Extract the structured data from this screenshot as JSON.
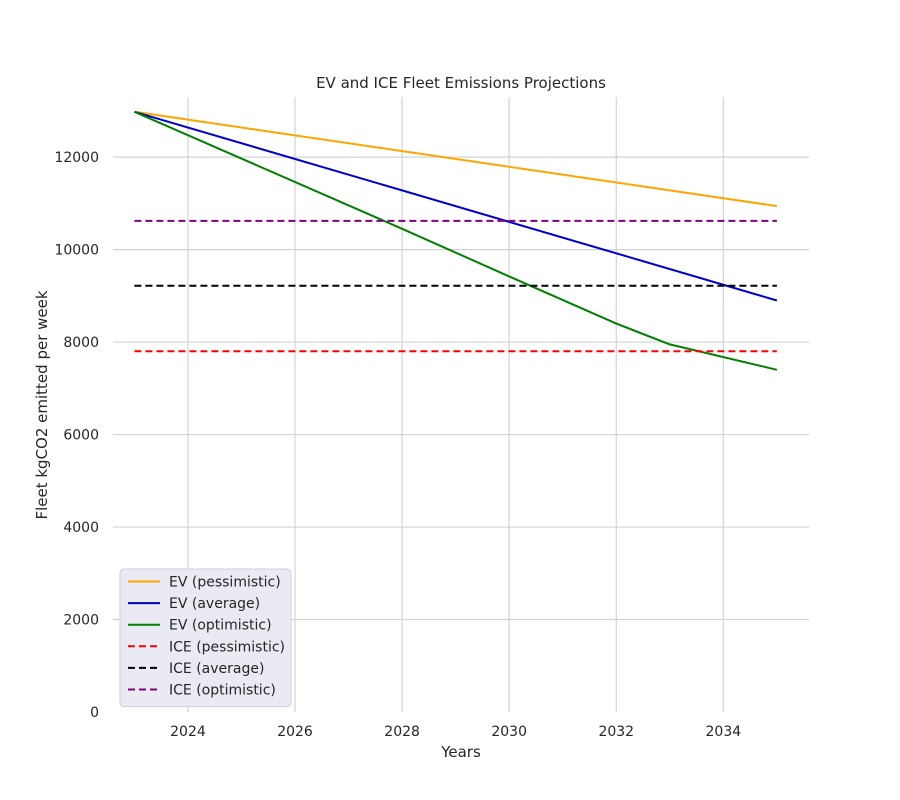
{
  "chart_data": {
    "type": "line",
    "title": "EV and ICE Fleet Emissions Projections",
    "xlabel": "Years",
    "ylabel": "Fleet kgCO2 emitted per week",
    "xlim": [
      2022.6,
      2035.6
    ],
    "ylim": [
      0,
      13300
    ],
    "xticks": [
      2024,
      2026,
      2028,
      2030,
      2032,
      2034
    ],
    "yticks": [
      0,
      2000,
      4000,
      6000,
      8000,
      10000,
      12000
    ],
    "grid": true,
    "legend_position": "lower-left",
    "series": [
      {
        "name": "EV (pessimistic)",
        "color": "#ffa500",
        "style": "solid",
        "x": [
          2023,
          2035
        ],
        "y": [
          12980,
          10940
        ]
      },
      {
        "name": "EV (average)",
        "color": "#0000cd",
        "style": "solid",
        "x": [
          2023,
          2035
        ],
        "y": [
          12980,
          8900
        ]
      },
      {
        "name": "EV (optimistic)",
        "color": "#008000",
        "style": "solid",
        "x": [
          2023,
          2028,
          2030,
          2032,
          2033,
          2035
        ],
        "y": [
          12980,
          10450,
          9420,
          8400,
          7950,
          7400
        ]
      },
      {
        "name": "ICE (pessimistic)",
        "color": "#ff0000",
        "style": "dashed",
        "x": [
          2023,
          2035
        ],
        "y": [
          7800,
          7800
        ]
      },
      {
        "name": "ICE (average)",
        "color": "#000000",
        "style": "dashed",
        "x": [
          2023,
          2035
        ],
        "y": [
          9220,
          9220
        ]
      },
      {
        "name": "ICE (optimistic)",
        "color": "#800080",
        "style": "dashed",
        "x": [
          2023,
          2035
        ],
        "y": [
          10620,
          10620
        ]
      }
    ]
  }
}
